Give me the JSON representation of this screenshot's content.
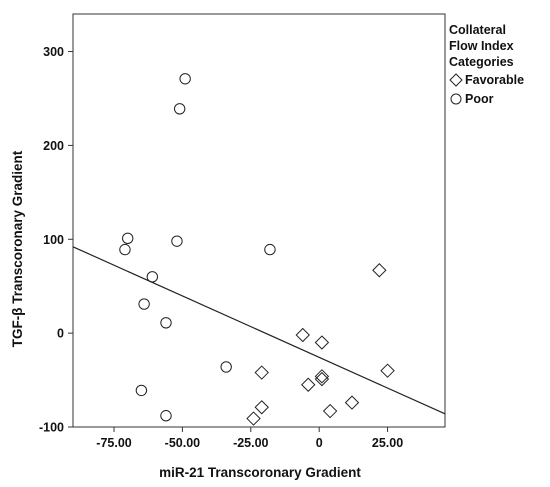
{
  "chart_data": {
    "type": "scatter",
    "title": "",
    "xlabel": "miR-21 Transcoronary Gradient",
    "ylabel": "TGF-β Transcoronary Gradient",
    "xlim": [
      -90,
      46
    ],
    "ylim": [
      -100,
      340
    ],
    "x_ticks": [
      -75,
      -50,
      -25,
      0,
      25
    ],
    "x_tick_labels": [
      "-75.00",
      "-50.00",
      "-25.00",
      "0",
      "25.00"
    ],
    "y_ticks": [
      -100,
      0,
      100,
      200,
      300
    ],
    "y_tick_labels": [
      "-100",
      "0",
      "100",
      "200",
      "300"
    ],
    "grid": false,
    "legend": {
      "title_lines": [
        "Collateral",
        "Flow Index",
        "Categories"
      ],
      "placement": "right"
    },
    "series": [
      {
        "name": "Favorable",
        "marker": "diamond",
        "points": [
          {
            "x": 22,
            "y": 67
          },
          {
            "x": -6,
            "y": -2
          },
          {
            "x": 1,
            "y": -10
          },
          {
            "x": -21,
            "y": -42
          },
          {
            "x": 25,
            "y": -40
          },
          {
            "x": 1,
            "y": -46
          },
          {
            "x": 1,
            "y": -49
          },
          {
            "x": -4,
            "y": -55
          },
          {
            "x": 12,
            "y": -74
          },
          {
            "x": -21,
            "y": -79
          },
          {
            "x": 4,
            "y": -83
          },
          {
            "x": -24,
            "y": -91
          }
        ]
      },
      {
        "name": "Poor",
        "marker": "circle",
        "points": [
          {
            "x": -49,
            "y": 271
          },
          {
            "x": -51,
            "y": 239
          },
          {
            "x": -70,
            "y": 101
          },
          {
            "x": -52,
            "y": 98
          },
          {
            "x": -71,
            "y": 89
          },
          {
            "x": -18,
            "y": 89
          },
          {
            "x": -61,
            "y": 60
          },
          {
            "x": -64,
            "y": 31
          },
          {
            "x": -56,
            "y": 11
          },
          {
            "x": -34,
            "y": -36
          },
          {
            "x": -65,
            "y": -61
          },
          {
            "x": -56,
            "y": -88
          }
        ]
      }
    ],
    "fit_line": {
      "type": "linear",
      "from": {
        "x": -90,
        "y": 92
      },
      "to": {
        "x": 46,
        "y": -86
      }
    }
  }
}
